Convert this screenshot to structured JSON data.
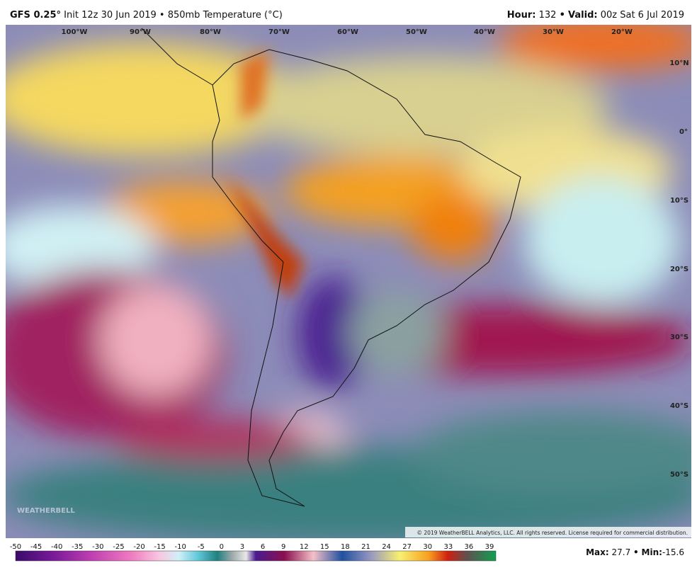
{
  "header": {
    "model": "GFS 0.25°",
    "run": "Init 12z 30 Jun 2019 • 850mb Temperature (°C)",
    "hour_label": "Hour:",
    "hour": 132,
    "separator": "•",
    "valid_label": "Valid:",
    "valid": "00z Sat 6 Jul 2019"
  },
  "map": {
    "longitudes": [
      "100°W",
      "90°W",
      "80°W",
      "70°W",
      "60°W",
      "50°W",
      "40°W",
      "30°W",
      "20°W"
    ],
    "latitudes": [
      "10°N",
      "0°",
      "10°S",
      "20°S",
      "30°S",
      "40°S",
      "50°S"
    ],
    "copyright": "© 2019 WeatherBELL Analytics, LLC. All rights reserved. License required for commercial distribution.",
    "logo": "WEATHERBELL"
  },
  "colorbar": {
    "labels": [
      -50,
      -45,
      -40,
      -35,
      -30,
      -25,
      -20,
      -15,
      -10,
      -5,
      0,
      3,
      6,
      9,
      12,
      15,
      18,
      21,
      24,
      27,
      30,
      33,
      36,
      39
    ]
  },
  "stats": {
    "max_label": "Max:",
    "max": 27.7,
    "separator": "•",
    "min_label": "Min:",
    "min": -15.6
  }
}
